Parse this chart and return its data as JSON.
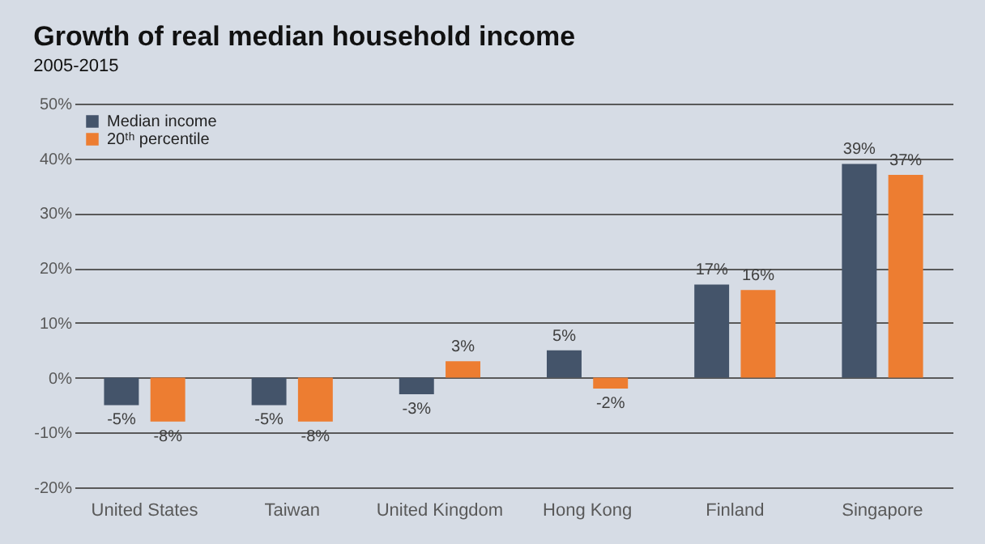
{
  "chart_data": {
    "type": "bar",
    "title": "Growth of real median household income",
    "subtitle": "2005-2015",
    "categories": [
      "United States",
      "Taiwan",
      "United Kingdom",
      "Hong Kong",
      "Finland",
      "Singapore"
    ],
    "series": [
      {
        "name": "Median income",
        "color": "#44546a",
        "values": [
          -5,
          -5,
          -3,
          5,
          17,
          39
        ],
        "value_labels": [
          "-5%",
          "-5%",
          "-3%",
          "5%",
          "17%",
          "39%"
        ]
      },
      {
        "name": "20ᵗʰ percentile",
        "color": "#ed7d31",
        "values": [
          -8,
          -8,
          3,
          -2,
          16,
          37
        ],
        "value_labels": [
          "-8%",
          "-8%",
          "3%",
          "-2%",
          "16%",
          "37%"
        ]
      }
    ],
    "ylim": [
      -20,
      50
    ],
    "yticks": [
      {
        "value": -20,
        "label": "-20%"
      },
      {
        "value": -10,
        "label": "-10%"
      },
      {
        "value": 0,
        "label": "0%"
      },
      {
        "value": 10,
        "label": "10%"
      },
      {
        "value": 20,
        "label": "20%"
      },
      {
        "value": 30,
        "label": "30%"
      },
      {
        "value": 40,
        "label": "40%"
      },
      {
        "value": 50,
        "label": "50%"
      }
    ],
    "grid": true,
    "legend": "top left"
  }
}
